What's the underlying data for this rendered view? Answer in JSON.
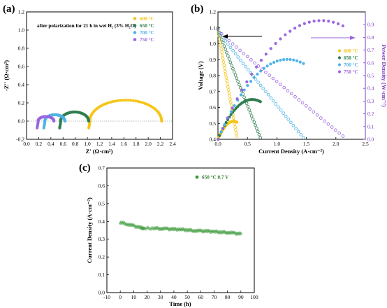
{
  "chart_data": [
    {
      "panel_label": "(a)",
      "type": "scatter",
      "xlabel": "Z' (Ω·cm²)",
      "ylabel": "-Z'' (Ω·cm²)",
      "xlim": [
        0.0,
        2.4
      ],
      "ylim": [
        -0.2,
        1.2
      ],
      "xticks": [
        "0.0",
        "0.2",
        "0.4",
        "0.6",
        "0.8",
        "1.0",
        "1.2",
        "1.4",
        "1.6",
        "1.8",
        "2.0",
        "2.2",
        "2.4"
      ],
      "yticks": [
        "-0.2",
        "0.0",
        "0.2",
        "0.4",
        "0.6",
        "0.8",
        "1.0",
        "1.2"
      ],
      "annotation": "after polarization for 21 h in wet H₂ (3% H₂O)",
      "legend_position": "top-right",
      "series": [
        {
          "name": "600 °C",
          "color": "#F5C518",
          "r_inf": 1.04,
          "r_tot": 2.22,
          "peak": 0.23
        },
        {
          "name": "650 °C",
          "color": "#2E7D4F",
          "r_inf": 0.56,
          "r_tot": 1.02,
          "peak": 0.1
        },
        {
          "name": "700 °C",
          "color": "#4FB3E8",
          "r_inf": 0.3,
          "r_tot": 0.63,
          "peak": 0.07
        },
        {
          "name": "750 °C",
          "color": "#9966E0",
          "r_inf": 0.19,
          "r_tot": 0.45,
          "peak": 0.05
        }
      ]
    },
    {
      "panel_label": "(b)",
      "type": "line",
      "xlabel": "Current Density (A·cm⁻²)",
      "ylabel": "Voltage (V)",
      "y2label": "Power Density (W·cm⁻²)",
      "xlim": [
        0.0,
        2.5
      ],
      "ylim": [
        0.4,
        1.2
      ],
      "y2lim": [
        0.0,
        1.0
      ],
      "xticks": [
        "0.0",
        "0.5",
        "1.0",
        "1.5",
        "2.0",
        "2.5"
      ],
      "yticks": [
        "0.4",
        "0.5",
        "0.6",
        "0.7",
        "0.8",
        "0.9",
        "1.0",
        "1.1",
        "1.2"
      ],
      "y2ticks": [
        "0.0",
        "0.1",
        "0.2",
        "0.3",
        "0.4",
        "0.5",
        "0.6",
        "0.7",
        "0.8",
        "0.9"
      ],
      "legend_position": "right",
      "series": [
        {
          "name": "600 °C",
          "color": "#F5C518",
          "ocv": 1.1,
          "end_v": 0.42,
          "i_max": 0.32,
          "i_peak_p": 0.3
        },
        {
          "name": "650 °C",
          "color": "#2E7D4F",
          "ocv": 1.1,
          "end_v": 0.41,
          "i_max": 0.72,
          "i_peak_p": 0.65
        },
        {
          "name": "700 °C",
          "color": "#4FB3E8",
          "ocv": 1.09,
          "end_v": 0.41,
          "i_max": 1.45,
          "i_peak_p": 1.3
        },
        {
          "name": "750 °C",
          "color": "#9966E0",
          "ocv": 1.09,
          "end_v": 0.42,
          "i_max": 2.12,
          "i_peak_p": 1.88
        }
      ]
    },
    {
      "panel_label": "(c)",
      "type": "scatter",
      "xlabel": "Time (h)",
      "ylabel": "Current Density (A·cm⁻²)",
      "xlim": [
        -10,
        100
      ],
      "ylim": [
        0.0,
        0.7
      ],
      "xticks": [
        "-10",
        "0",
        "10",
        "20",
        "30",
        "40",
        "50",
        "60",
        "70",
        "80",
        "90",
        "100"
      ],
      "yticks": [
        "0.0",
        "0.1",
        "0.2",
        "0.3",
        "0.4",
        "0.5",
        "0.6",
        "0.7"
      ],
      "legend_position": "top-right",
      "series": [
        {
          "name": "650 °C 0.7 V",
          "color": "#3C9A3C",
          "x": [
            0,
            5,
            10,
            15,
            18,
            25,
            30,
            35,
            40,
            45,
            50,
            55,
            60,
            65,
            70,
            75,
            80,
            85,
            90
          ],
          "y": [
            0.395,
            0.385,
            0.375,
            0.365,
            0.36,
            0.362,
            0.36,
            0.358,
            0.356,
            0.355,
            0.352,
            0.348,
            0.346,
            0.345,
            0.343,
            0.34,
            0.338,
            0.334,
            0.33
          ]
        }
      ]
    }
  ]
}
